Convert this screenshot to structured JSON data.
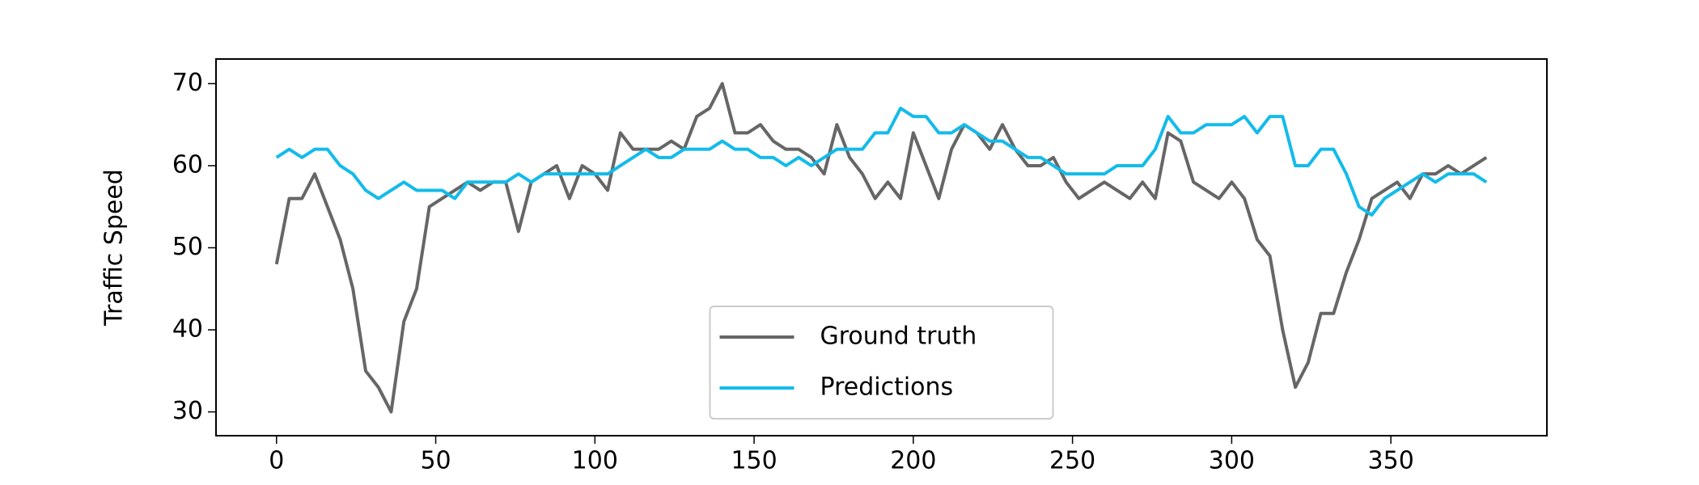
{
  "chart_data": {
    "type": "line",
    "y_label": "Traffic Speed",
    "x": [
      0,
      4,
      8,
      12,
      16,
      20,
      24,
      28,
      32,
      36,
      40,
      44,
      48,
      52,
      56,
      60,
      64,
      68,
      72,
      76,
      80,
      84,
      88,
      92,
      96,
      100,
      104,
      108,
      112,
      116,
      120,
      124,
      128,
      132,
      136,
      140,
      144,
      148,
      152,
      156,
      160,
      164,
      168,
      172,
      176,
      180,
      184,
      188,
      192,
      196,
      200,
      204,
      208,
      212,
      216,
      220,
      224,
      228,
      232,
      236,
      240,
      244,
      248,
      252,
      256,
      260,
      264,
      268,
      272,
      276,
      280,
      284,
      288,
      292,
      296,
      300,
      304,
      308,
      312,
      316,
      320,
      324,
      328,
      332,
      336,
      340,
      344,
      348,
      352,
      356,
      360,
      364,
      368,
      372,
      376,
      380
    ],
    "series": [
      {
        "name": "Ground truth",
        "color": "#666666",
        "values": [
          48,
          56,
          56,
          59,
          55,
          51,
          45,
          35,
          33,
          30,
          41,
          45,
          55,
          56,
          57,
          58,
          57,
          58,
          58,
          52,
          58,
          59,
          60,
          56,
          60,
          59,
          57,
          64,
          62,
          62,
          62,
          63,
          62,
          66,
          67,
          70,
          64,
          64,
          65,
          63,
          62,
          62,
          61,
          59,
          65,
          61,
          59,
          56,
          58,
          56,
          64,
          60,
          56,
          62,
          65,
          64,
          62,
          65,
          62,
          60,
          60,
          61,
          58,
          56,
          57,
          58,
          57,
          56,
          58,
          56,
          64,
          63,
          58,
          57,
          56,
          58,
          56,
          51,
          49,
          40,
          33,
          36,
          42,
          42,
          47,
          51,
          56,
          57,
          58,
          56,
          59,
          59,
          60,
          59,
          60,
          61
        ]
      },
      {
        "name": "Predictions",
        "color": "#13bbea",
        "values": [
          61,
          62,
          61,
          62,
          62,
          60,
          59,
          57,
          56,
          57,
          58,
          57,
          57,
          57,
          56,
          58,
          58,
          58,
          58,
          59,
          58,
          59,
          59,
          59,
          59,
          59,
          59,
          60,
          61,
          62,
          61,
          61,
          62,
          62,
          62,
          63,
          62,
          62,
          61,
          61,
          60,
          61,
          60,
          61,
          62,
          62,
          62,
          64,
          64,
          67,
          66,
          66,
          64,
          64,
          65,
          64,
          63,
          63,
          62,
          61,
          61,
          60,
          59,
          59,
          59,
          59,
          60,
          60,
          60,
          62,
          66,
          64,
          64,
          65,
          65,
          65,
          66,
          64,
          66,
          66,
          60,
          60,
          62,
          62,
          59,
          55,
          54,
          56,
          57,
          58,
          59,
          58,
          59,
          59,
          59,
          58
        ]
      }
    ],
    "xlim": [
      -19,
      399
    ],
    "xticks": [
      0,
      50,
      100,
      150,
      200,
      250,
      300,
      350
    ],
    "ylim": [
      27.1,
      73.0
    ],
    "yticks": [
      30,
      40,
      50,
      60,
      70
    ],
    "legend": "lower center"
  }
}
